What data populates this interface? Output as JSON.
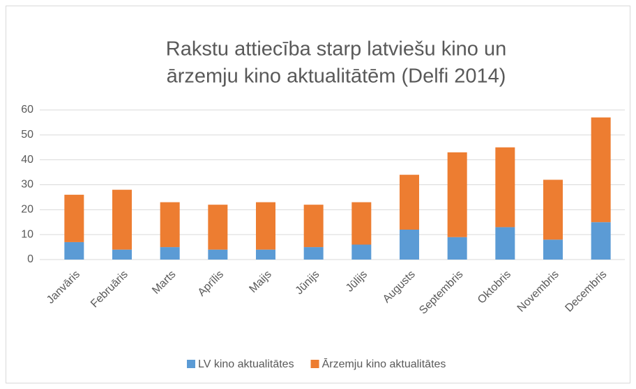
{
  "chart_data": {
    "type": "stacked_bar",
    "title": [
      "Rakstu attiecība starp latviešu kino un",
      "ārzemju kino aktualitātēm (Delfi 2014)"
    ],
    "categories": [
      "Janvāris",
      "Februāris",
      "Marts",
      "Aprīlis",
      "Maijs",
      "Jūnijs",
      "Jūlijs",
      "Augusts",
      "Septembris",
      "Oktobris",
      "Novembris",
      "Decembris"
    ],
    "series": [
      {
        "name": "LV kino aktualitātes",
        "color": "#5b9bd5",
        "values": [
          7,
          4,
          5,
          4,
          4,
          5,
          6,
          12,
          9,
          13,
          8,
          15
        ]
      },
      {
        "name": "Ārzemju kino aktualitātes",
        "color": "#ed7d31",
        "values": [
          19,
          24,
          18,
          18,
          19,
          17,
          17,
          22,
          34,
          32,
          24,
          42
        ]
      }
    ],
    "ylim": [
      0,
      60
    ],
    "yticks": [
      0,
      10,
      20,
      30,
      40,
      50,
      60
    ],
    "grid": true,
    "legend": "bottom"
  }
}
